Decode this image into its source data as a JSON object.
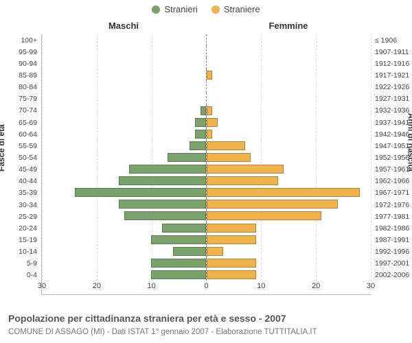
{
  "chart": {
    "type": "population-pyramid",
    "legend": {
      "male": {
        "label": "Stranieri",
        "color": "#7aa36b"
      },
      "female": {
        "label": "Straniere",
        "color": "#f0b24a"
      }
    },
    "column_headers": {
      "left": "Maschi",
      "right": "Femmine"
    },
    "left_axis_title": "Fasce di età",
    "right_axis_title": "Anni di nascita",
    "x_axis": {
      "max": 30,
      "ticks": [
        30,
        20,
        10,
        0,
        10,
        20,
        30
      ],
      "tick_fontsize": 11
    },
    "label_fontsize": 10.5,
    "background_color": "#ffffff",
    "grid_color": "#dddddd",
    "rows": [
      {
        "age": "100+",
        "birth": "≤ 1906",
        "m": 0,
        "f": 0
      },
      {
        "age": "95-99",
        "birth": "1907-1911",
        "m": 0,
        "f": 0
      },
      {
        "age": "90-94",
        "birth": "1912-1916",
        "m": 0,
        "f": 0
      },
      {
        "age": "85-89",
        "birth": "1917-1921",
        "m": 0,
        "f": 1
      },
      {
        "age": "80-84",
        "birth": "1922-1926",
        "m": 0,
        "f": 0
      },
      {
        "age": "75-79",
        "birth": "1927-1931",
        "m": 0,
        "f": 0
      },
      {
        "age": "70-74",
        "birth": "1932-1936",
        "m": 1,
        "f": 1
      },
      {
        "age": "65-69",
        "birth": "1937-1941",
        "m": 2,
        "f": 2
      },
      {
        "age": "60-64",
        "birth": "1942-1946",
        "m": 2,
        "f": 1
      },
      {
        "age": "55-59",
        "birth": "1947-1951",
        "m": 3,
        "f": 7
      },
      {
        "age": "50-54",
        "birth": "1952-1956",
        "m": 7,
        "f": 8
      },
      {
        "age": "45-49",
        "birth": "1957-1961",
        "m": 14,
        "f": 14
      },
      {
        "age": "40-44",
        "birth": "1962-1966",
        "m": 16,
        "f": 13
      },
      {
        "age": "35-39",
        "birth": "1967-1971",
        "m": 24,
        "f": 28
      },
      {
        "age": "30-34",
        "birth": "1972-1976",
        "m": 16,
        "f": 24
      },
      {
        "age": "25-29",
        "birth": "1977-1981",
        "m": 15,
        "f": 21
      },
      {
        "age": "20-24",
        "birth": "1982-1986",
        "m": 8,
        "f": 9
      },
      {
        "age": "15-19",
        "birth": "1987-1991",
        "m": 10,
        "f": 9
      },
      {
        "age": "10-14",
        "birth": "1992-1996",
        "m": 6,
        "f": 3
      },
      {
        "age": "5-9",
        "birth": "1997-2001",
        "m": 10,
        "f": 9
      },
      {
        "age": "0-4",
        "birth": "2002-2006",
        "m": 10,
        "f": 9
      }
    ],
    "caption_title": "Popolazione per cittadinanza straniera per età e sesso - 2007",
    "caption_sub": "COMUNE DI ASSAGO (MI) - Dati ISTAT 1° gennaio 2007 - Elaborazione TUTTITALIA.IT"
  }
}
